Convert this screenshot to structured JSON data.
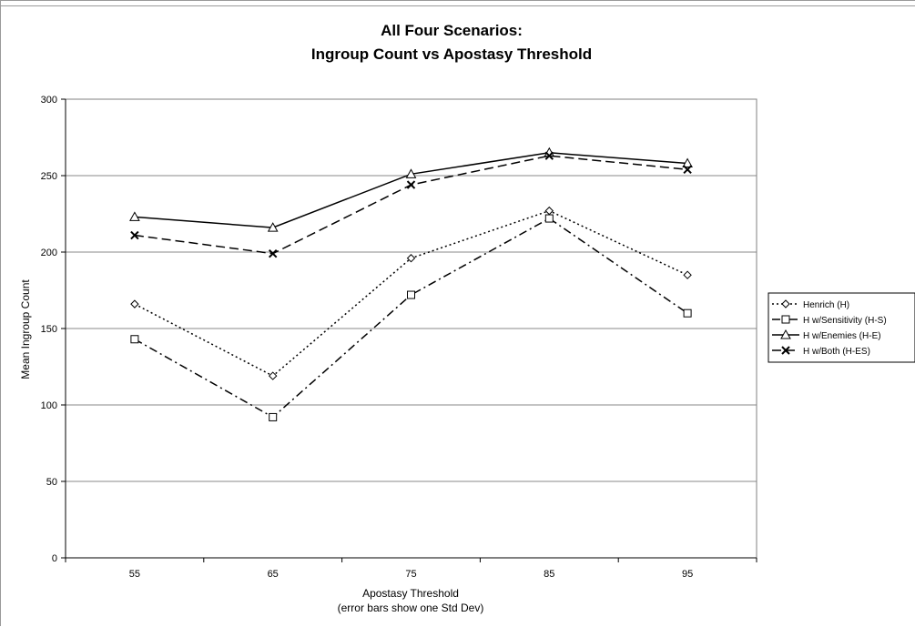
{
  "chart_data": {
    "type": "line",
    "title_line1": "All Four Scenarios:",
    "title_line2": "Ingroup Count vs Apostasy Threshold",
    "xlabel_line1": "Apostasy Threshold",
    "xlabel_line2": "(error bars show one Std Dev)",
    "ylabel": "Mean Ingroup Count",
    "categories": [
      "55",
      "65",
      "75",
      "85",
      "95"
    ],
    "ylim": [
      0,
      300
    ],
    "yticks": [
      0,
      50,
      100,
      150,
      200,
      250,
      300
    ],
    "grid": true,
    "legend_position": "right",
    "series": [
      {
        "name": "Henrich (H)",
        "values": [
          166,
          119,
          196,
          227,
          185
        ],
        "marker": "diamond",
        "dash": "dotted",
        "color": "#000000"
      },
      {
        "name": "H w/Sensitivity (H-S)",
        "values": [
          143,
          92,
          172,
          222,
          160
        ],
        "marker": "square",
        "dash": "dash-dot",
        "color": "#000000"
      },
      {
        "name": "H w/Enemies (H-E)",
        "values": [
          223,
          216,
          251,
          265,
          258
        ],
        "marker": "triangle",
        "dash": "solid",
        "color": "#000000"
      },
      {
        "name": "H w/Both (H-ES)",
        "values": [
          211,
          199,
          244,
          263,
          254
        ],
        "marker": "x",
        "dash": "dashed",
        "color": "#000000"
      }
    ]
  }
}
